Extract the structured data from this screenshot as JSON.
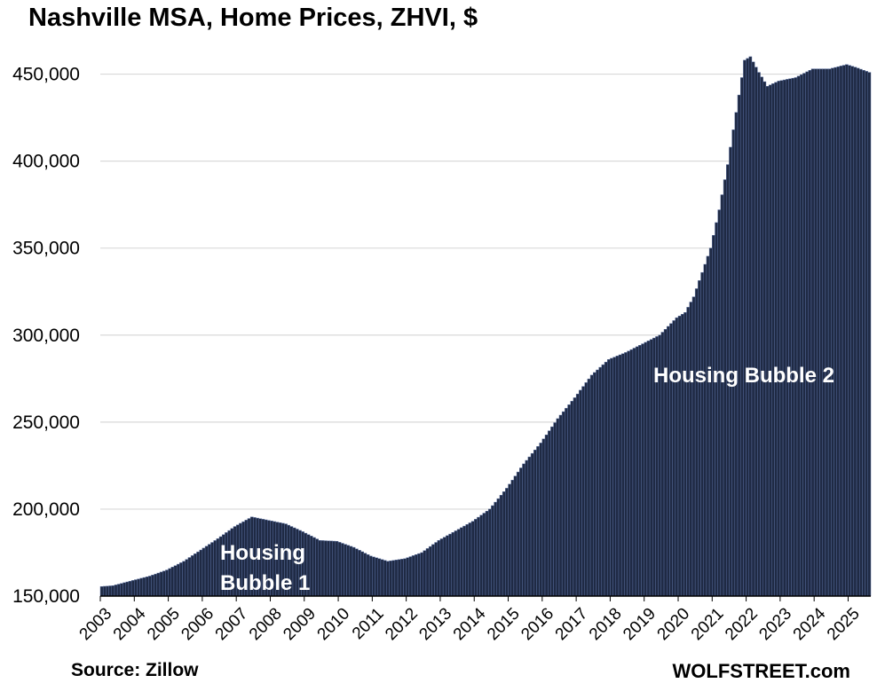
{
  "chart_data": {
    "type": "bar",
    "title": "Nashville MSA, Home Prices, ZHVI, $",
    "xlabel": "",
    "ylabel": "",
    "ylim": [
      150000,
      462000
    ],
    "yticks": [
      150000,
      200000,
      250000,
      300000,
      350000,
      400000,
      450000
    ],
    "ytick_labels": [
      "150,000",
      "200,000",
      "250,000",
      "300,000",
      "350,000",
      "400,000",
      "450,000"
    ],
    "xtick_labels": [
      "2003",
      "2004",
      "2005",
      "2006",
      "2007",
      "2008",
      "2009",
      "2010",
      "2011",
      "2012",
      "2013",
      "2014",
      "2015",
      "2016",
      "2017",
      "2018",
      "2019",
      "2020",
      "2021",
      "2022",
      "2023",
      "2024",
      "2025"
    ],
    "bar_color": "#1f2a44",
    "bar_edge_color": "#5a6fa0",
    "grid": true,
    "frequency": "monthly",
    "start": "2003-01",
    "end": "2025-08",
    "anchors": [
      [
        "2003-01",
        155500
      ],
      [
        "2003-05",
        156000
      ],
      [
        "2003-12",
        159000
      ],
      [
        "2004-06",
        161500
      ],
      [
        "2004-12",
        165000
      ],
      [
        "2005-06",
        170000
      ],
      [
        "2005-12",
        176500
      ],
      [
        "2006-06",
        183000
      ],
      [
        "2006-12",
        190000
      ],
      [
        "2007-06",
        195500
      ],
      [
        "2007-12",
        193500
      ],
      [
        "2008-06",
        191500
      ],
      [
        "2008-12",
        187000
      ],
      [
        "2009-06",
        182000
      ],
      [
        "2009-12",
        181500
      ],
      [
        "2010-06",
        178000
      ],
      [
        "2010-12",
        173000
      ],
      [
        "2011-06",
        170000
      ],
      [
        "2011-12",
        171500
      ],
      [
        "2012-06",
        175000
      ],
      [
        "2012-12",
        182000
      ],
      [
        "2013-06",
        187500
      ],
      [
        "2013-12",
        193000
      ],
      [
        "2014-06",
        200000
      ],
      [
        "2014-12",
        212000
      ],
      [
        "2015-06",
        226000
      ],
      [
        "2015-12",
        238000
      ],
      [
        "2016-06",
        252000
      ],
      [
        "2016-12",
        264000
      ],
      [
        "2017-06",
        277000
      ],
      [
        "2017-12",
        286000
      ],
      [
        "2018-06",
        290000
      ],
      [
        "2018-12",
        295000
      ],
      [
        "2019-06",
        300000
      ],
      [
        "2019-12",
        310000
      ],
      [
        "2020-03",
        313000
      ],
      [
        "2020-06",
        322000
      ],
      [
        "2020-12",
        350000
      ],
      [
        "2021-03",
        372000
      ],
      [
        "2021-06",
        398000
      ],
      [
        "2021-09",
        428000
      ],
      [
        "2021-12",
        458000
      ],
      [
        "2022-02",
        460000
      ],
      [
        "2022-05",
        451000
      ],
      [
        "2022-08",
        443000
      ],
      [
        "2022-12",
        446000
      ],
      [
        "2023-06",
        448000
      ],
      [
        "2023-12",
        453000
      ],
      [
        "2024-06",
        453000
      ],
      [
        "2024-12",
        455500
      ],
      [
        "2025-03",
        454000
      ],
      [
        "2025-08",
        451000
      ]
    ]
  },
  "annotations": {
    "bubble1_line1": "Housing",
    "bubble1_line2": "Bubble 1",
    "bubble2": "Housing Bubble 2"
  },
  "footer": {
    "source": "Source: Zillow",
    "site": "WOLFSTREET.com"
  }
}
